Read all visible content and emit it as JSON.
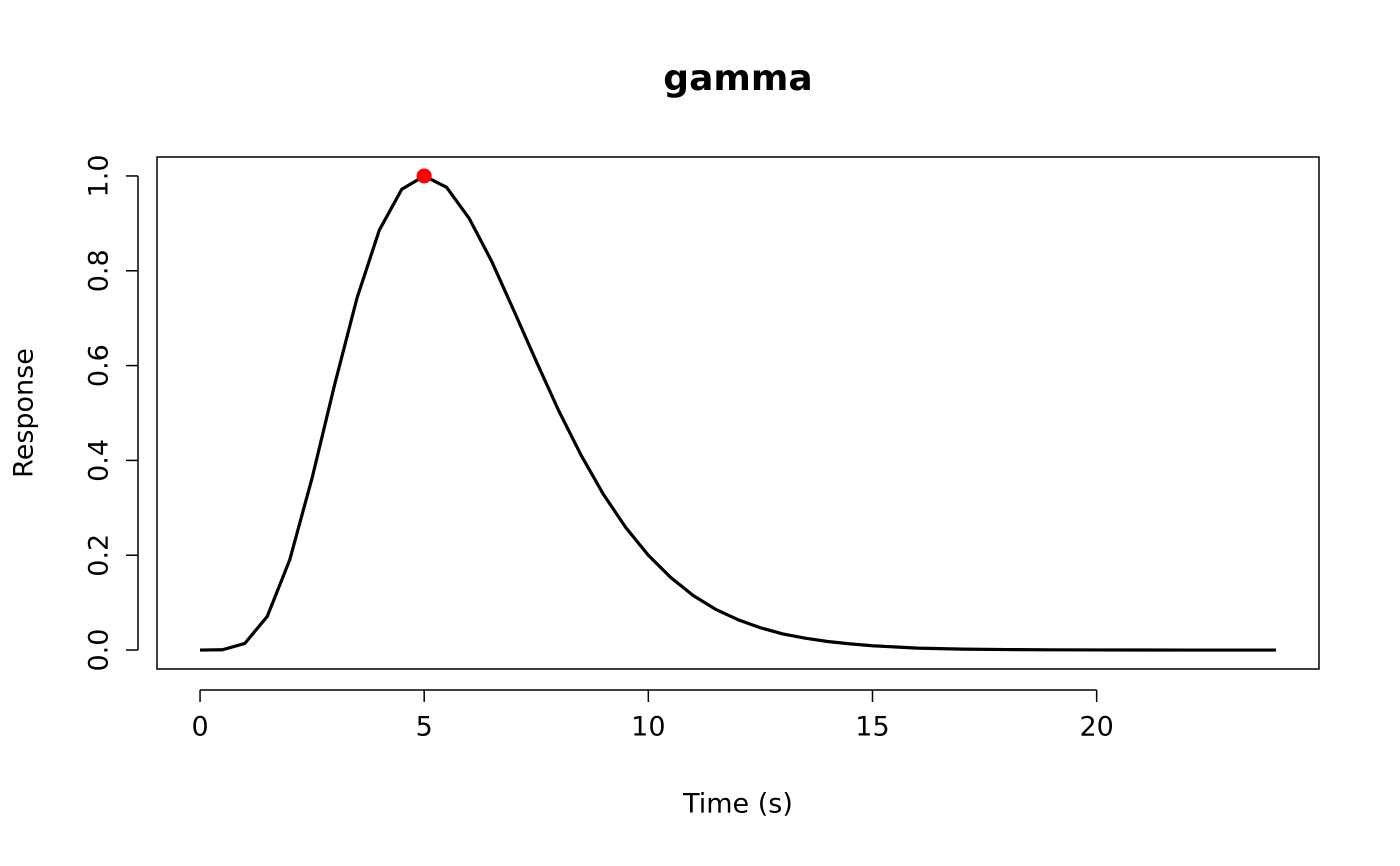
{
  "chart_data": {
    "type": "line",
    "title": "gamma",
    "x_label": "Time (s)",
    "y_label": "Response",
    "x": [
      0,
      0.5,
      1,
      1.5,
      2,
      2.5,
      3,
      3.5,
      4,
      4.5,
      5,
      5.5,
      6,
      6.5,
      7,
      7.5,
      8,
      8.5,
      9,
      9.5,
      10,
      10.5,
      11,
      11.5,
      12,
      12.5,
      13,
      13.5,
      14,
      14.5,
      15,
      16,
      17,
      18,
      19,
      20,
      22,
      24
    ],
    "values": [
      0,
      0.0006,
      0.014,
      0.071,
      0.19,
      0.363,
      0.559,
      0.742,
      0.886,
      0.972,
      1,
      0.976,
      0.911,
      0.821,
      0.716,
      0.609,
      0.505,
      0.411,
      0.328,
      0.258,
      0.2,
      0.153,
      0.115,
      0.086,
      0.064,
      0.047,
      0.034,
      0.025,
      0.018,
      0.013,
      0.009,
      0.004,
      0.002,
      0.001,
      0.0005,
      0.0002,
      0,
      0
    ],
    "color": "#000000",
    "peak": {
      "x": 5,
      "y": 1,
      "color": "#ff0000"
    },
    "xlim": [
      -0.96,
      24.96
    ],
    "ylim": [
      -0.04,
      1.04
    ],
    "xticks": [
      0,
      5,
      10,
      15,
      20
    ],
    "yticks": [
      {
        "value": 0,
        "label": "0.0"
      },
      {
        "value": 0.2,
        "label": "0.2"
      },
      {
        "value": 0.4,
        "label": "0.4"
      },
      {
        "value": 0.6,
        "label": "0.6"
      },
      {
        "value": 0.8,
        "label": "0.8"
      },
      {
        "value": 1,
        "label": "1.0"
      }
    ],
    "grid": false
  }
}
